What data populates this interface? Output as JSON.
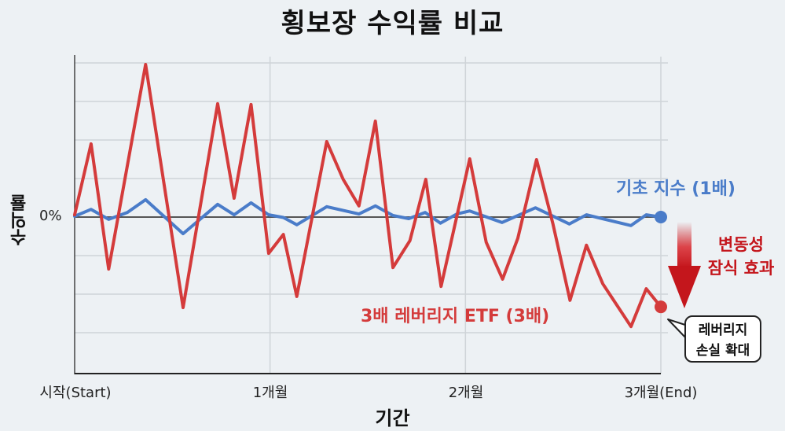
{
  "title": "횡보장 수익률 비교",
  "colors": {
    "background": "#edf1f4",
    "base_index": "#4a7cc9",
    "leveraged_etf": "#d43b3b",
    "annotation_red": "#c4161c",
    "grid": "#cfd4d8",
    "zero_line": "#555555"
  },
  "chart_data": {
    "type": "line",
    "title": "횡보장 수익률 비교",
    "xlabel": "기간",
    "ylabel": "수익률",
    "x_ticks": [
      "시작(Start)",
      "1개월",
      "2개월",
      "3개월(End)"
    ],
    "y_ticks": [
      "0%"
    ],
    "grid": true,
    "units_note": "Only 0% is labeled; values below are relative units where 1 gridline = 10",
    "series": [
      {
        "name": "기초 지수 (1배)",
        "color": "#4a7cc9",
        "points": [
          [
            0.0,
            0.2
          ],
          [
            0.028,
            2.0
          ],
          [
            0.058,
            -0.6
          ],
          [
            0.09,
            1.2
          ],
          [
            0.121,
            4.5
          ],
          [
            0.185,
            -4.3
          ],
          [
            0.244,
            3.3
          ],
          [
            0.272,
            0.6
          ],
          [
            0.301,
            3.7
          ],
          [
            0.331,
            0.6
          ],
          [
            0.356,
            -0.1
          ],
          [
            0.379,
            -2.0
          ],
          [
            0.43,
            2.7
          ],
          [
            0.485,
            0.8
          ],
          [
            0.513,
            2.9
          ],
          [
            0.543,
            0.4
          ],
          [
            0.57,
            -0.4
          ],
          [
            0.598,
            1.2
          ],
          [
            0.624,
            -1.6
          ],
          [
            0.652,
            0.8
          ],
          [
            0.674,
            1.6
          ],
          [
            0.729,
            -1.4
          ],
          [
            0.786,
            2.4
          ],
          [
            0.844,
            -1.8
          ],
          [
            0.873,
            0.6
          ],
          [
            0.949,
            -2.2
          ],
          [
            0.975,
            0.6
          ],
          [
            1.0,
            0.0
          ]
        ]
      },
      {
        "name": "3배 레버리지 ETF (3배)",
        "color": "#d43b3b",
        "points": [
          [
            0.0,
            0.6
          ],
          [
            0.028,
            19.0
          ],
          [
            0.058,
            -13.5
          ],
          [
            0.121,
            39.6
          ],
          [
            0.185,
            -23.5
          ],
          [
            0.244,
            29.4
          ],
          [
            0.272,
            4.9
          ],
          [
            0.301,
            29.2
          ],
          [
            0.331,
            -9.4
          ],
          [
            0.356,
            -4.5
          ],
          [
            0.379,
            -20.6
          ],
          [
            0.43,
            19.6
          ],
          [
            0.458,
            9.8
          ],
          [
            0.485,
            2.9
          ],
          [
            0.513,
            24.9
          ],
          [
            0.543,
            -13.1
          ],
          [
            0.572,
            -6.1
          ],
          [
            0.599,
            9.8
          ],
          [
            0.625,
            -18.0
          ],
          [
            0.674,
            15.1
          ],
          [
            0.702,
            -6.5
          ],
          [
            0.73,
            -16.1
          ],
          [
            0.756,
            -5.5
          ],
          [
            0.788,
            14.9
          ],
          [
            0.816,
            -1.8
          ],
          [
            0.845,
            -21.6
          ],
          [
            0.873,
            -7.3
          ],
          [
            0.901,
            -17.3
          ],
          [
            0.949,
            -28.4
          ],
          [
            0.975,
            -18.6
          ],
          [
            1.0,
            -23.3
          ]
        ]
      }
    ],
    "annotations": [
      "변동성 잠식 효과",
      "레버리지 손실 확대"
    ]
  },
  "labels": {
    "ylabel": "수익률",
    "zero": "0%",
    "xlabel": "기간",
    "xticks": [
      "시작(Start)",
      "1개월",
      "2개월",
      "3개월(End)"
    ],
    "legend_blue": "기초 지수 (1배)",
    "legend_red": "3배 레버리지 ETF (3배)",
    "annot_line1": "변동성",
    "annot_line2": "잠식 효과",
    "callout_line1": "레버리지",
    "callout_line2": "손실 확대"
  }
}
